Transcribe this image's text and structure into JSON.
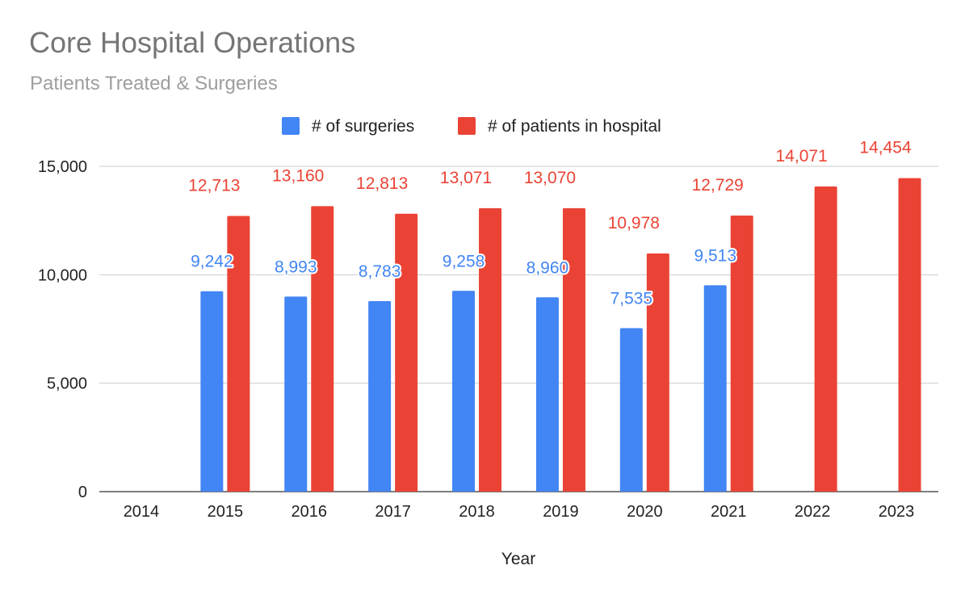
{
  "chart_data": {
    "type": "bar",
    "title": "Core Hospital Operations",
    "subtitle": "Patients Treated & Surgeries",
    "xlabel": "Year",
    "ylabel": "",
    "ylim": [
      0,
      15000
    ],
    "yticks": [
      0,
      5000,
      10000,
      15000
    ],
    "ytick_labels": [
      "0",
      "5,000",
      "10,000",
      "15,000"
    ],
    "grid": true,
    "legend_position": "top",
    "categories": [
      "2014",
      "2015",
      "2016",
      "2017",
      "2018",
      "2019",
      "2020",
      "2021",
      "2022",
      "2023"
    ],
    "series": [
      {
        "name": "# of surgeries",
        "color": "#4285f4",
        "values": [
          null,
          9242,
          8993,
          8783,
          9258,
          8960,
          7535,
          9513,
          null,
          null
        ],
        "labels": [
          null,
          "9,242",
          "8,993",
          "8,783",
          "9,258",
          "8,960",
          "7,535",
          "9,513",
          null,
          null
        ]
      },
      {
        "name": "# of patients in hospital",
        "color": "#ea4335",
        "values": [
          null,
          12713,
          13160,
          12813,
          13071,
          13070,
          10978,
          12729,
          14071,
          14454
        ],
        "labels": [
          null,
          "12,713",
          "13,160",
          "12,813",
          "13,071",
          "13,070",
          "10,978",
          "12,729",
          "14,071",
          "14,454"
        ]
      }
    ]
  }
}
